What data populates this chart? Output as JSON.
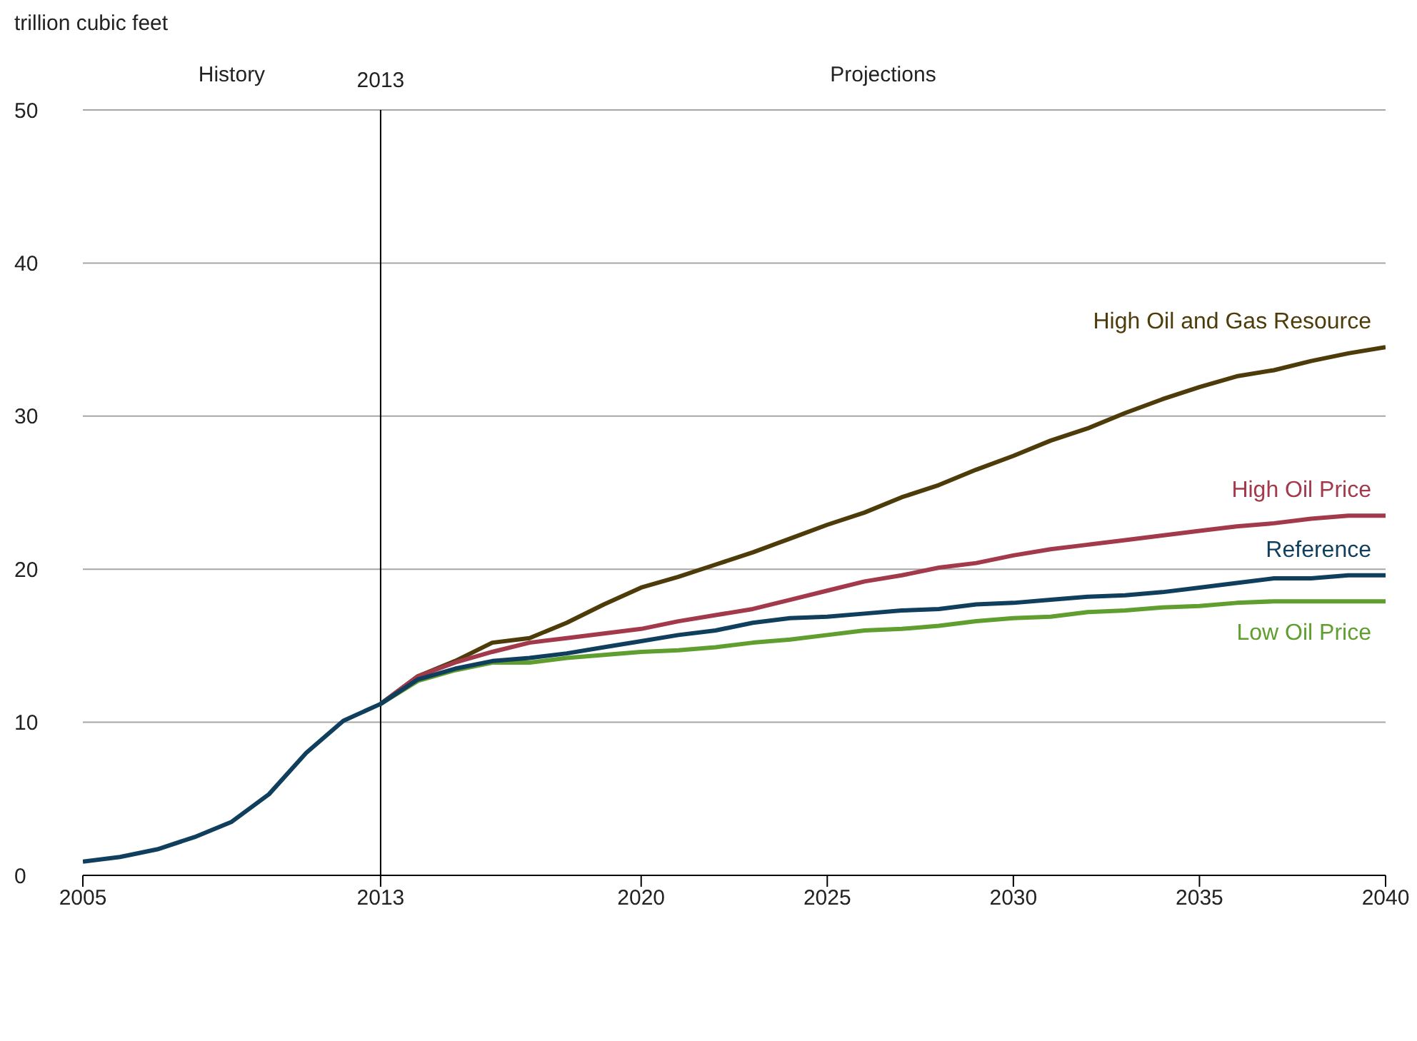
{
  "chart_data": {
    "type": "line",
    "ylabel": "trillion cubic feet",
    "xlim": [
      2005,
      2040
    ],
    "xticks": [
      2005,
      2013,
      2020,
      2025,
      2030,
      2035,
      2040
    ],
    "ylim": [
      0,
      50
    ],
    "yticks": [
      0,
      10,
      20,
      30,
      40,
      50
    ],
    "grid": "y",
    "legend": false,
    "marker": "none",
    "line_style": "solid",
    "ref_lines": [
      {
        "axis": "x",
        "value": 2013,
        "label": "2013",
        "color": "#000000"
      }
    ],
    "annotations": [
      "History",
      "Projections"
    ],
    "series": [
      {
        "name": "High Oil and Gas Resource",
        "color": "#4d3b0a",
        "x": [
          2013,
          2014,
          2015,
          2016,
          2017,
          2018,
          2019,
          2020,
          2021,
          2022,
          2023,
          2024,
          2025,
          2026,
          2027,
          2028,
          2029,
          2030,
          2031,
          2032,
          2033,
          2034,
          2035,
          2036,
          2037,
          2038,
          2039,
          2040
        ],
        "values": [
          11.2,
          13.0,
          14.0,
          15.2,
          15.5,
          16.5,
          17.7,
          18.8,
          19.5,
          20.3,
          21.1,
          22.0,
          22.9,
          23.7,
          24.7,
          25.5,
          26.5,
          27.4,
          28.4,
          29.2,
          30.2,
          31.1,
          31.9,
          32.6,
          33.0,
          33.6,
          34.1,
          34.5
        ]
      },
      {
        "name": "High Oil Price",
        "color": "#a33a4b",
        "x": [
          2013,
          2014,
          2015,
          2016,
          2017,
          2018,
          2019,
          2020,
          2021,
          2022,
          2023,
          2024,
          2025,
          2026,
          2027,
          2028,
          2029,
          2030,
          2031,
          2032,
          2033,
          2034,
          2035,
          2036,
          2037,
          2038,
          2039,
          2040
        ],
        "values": [
          11.2,
          13.0,
          13.9,
          14.6,
          15.2,
          15.5,
          15.8,
          16.1,
          16.6,
          17.0,
          17.4,
          18.0,
          18.6,
          19.2,
          19.6,
          20.1,
          20.4,
          20.9,
          21.3,
          21.6,
          21.9,
          22.2,
          22.5,
          22.8,
          23.0,
          23.3,
          23.5,
          23.5
        ]
      },
      {
        "name": "Low Oil Price",
        "color": "#5f9e2f",
        "x": [
          2013,
          2014,
          2015,
          2016,
          2017,
          2018,
          2019,
          2020,
          2021,
          2022,
          2023,
          2024,
          2025,
          2026,
          2027,
          2028,
          2029,
          2030,
          2031,
          2032,
          2033,
          2034,
          2035,
          2036,
          2037,
          2038,
          2039,
          2040
        ],
        "values": [
          11.2,
          12.7,
          13.4,
          13.9,
          13.9,
          14.2,
          14.4,
          14.6,
          14.7,
          14.9,
          15.2,
          15.4,
          15.7,
          16.0,
          16.1,
          16.3,
          16.6,
          16.8,
          16.9,
          17.2,
          17.3,
          17.5,
          17.6,
          17.8,
          17.9,
          17.9,
          17.9,
          17.9
        ]
      },
      {
        "name": "Reference",
        "color": "#0f3f5c",
        "x": [
          2005,
          2006,
          2007,
          2008,
          2009,
          2010,
          2011,
          2012,
          2013,
          2014,
          2015,
          2016,
          2017,
          2018,
          2019,
          2020,
          2021,
          2022,
          2023,
          2024,
          2025,
          2026,
          2027,
          2028,
          2029,
          2030,
          2031,
          2032,
          2033,
          2034,
          2035,
          2036,
          2037,
          2038,
          2039,
          2040
        ],
        "values": [
          0.9,
          1.2,
          1.7,
          2.5,
          3.5,
          5.3,
          8.0,
          10.1,
          11.2,
          12.8,
          13.5,
          14.0,
          14.2,
          14.5,
          14.9,
          15.3,
          15.7,
          16.0,
          16.5,
          16.8,
          16.9,
          17.1,
          17.3,
          17.4,
          17.7,
          17.8,
          18.0,
          18.2,
          18.3,
          18.5,
          18.8,
          19.1,
          19.4,
          19.4,
          19.6,
          19.6
        ]
      }
    ]
  }
}
